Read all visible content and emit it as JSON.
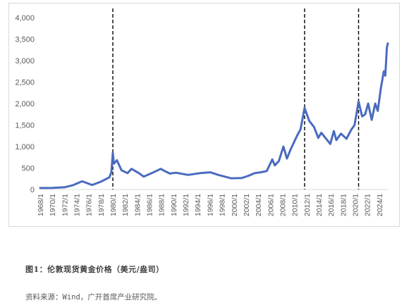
{
  "caption": "图1：伦敦现货黄金价格（美元/盎司）",
  "source": "资料来源：Wind，广开首席产业研究院。",
  "colors": {
    "line": "#4a6bbf",
    "axis": "#d9d9d9",
    "marker": "#000000"
  },
  "chart_data": {
    "type": "line",
    "title": "",
    "xlabel": "",
    "ylabel": "",
    "ylim": [
      0,
      4000
    ],
    "yticks": [
      "0",
      "500",
      "1,000",
      "1,500",
      "2,000",
      "2,500",
      "3,000",
      "3,500",
      "4,000"
    ],
    "ytick_values": [
      0,
      500,
      1000,
      1500,
      2000,
      2500,
      3000,
      3500,
      4000
    ],
    "xlim": [
      "1968/1",
      "2025/6"
    ],
    "xticks": [
      "1968/1",
      "1970/1",
      "1972/1",
      "1974/1",
      "1976/1",
      "1978/1",
      "1980/1",
      "1982/1",
      "1984/1",
      "1986/1",
      "1988/1",
      "1990/1",
      "1992/1",
      "1994/1",
      "1996/1",
      "1998/1",
      "2000/1",
      "2002/1",
      "2004/1",
      "2006/1",
      "2008/1",
      "2010/1",
      "2012/1",
      "2014/1",
      "2016/1",
      "2018/1",
      "2020/1",
      "2022/1",
      "2024/1"
    ],
    "grid": false,
    "legend": "none",
    "vertical_markers": [
      "1980/1",
      "2011/9",
      "2020/8"
    ],
    "series": [
      {
        "x": [
          "1968/1",
          "1970/1",
          "1972/1",
          "1973/6",
          "1974/12",
          "1976/8",
          "1978/1",
          "1979/6",
          "1979/10",
          "1980/1",
          "1980/3",
          "1980/9",
          "1981/6",
          "1982/6",
          "1983/2",
          "1984/6",
          "1985/2",
          "1986/6",
          "1987/12",
          "1988/6",
          "1989/6",
          "1990/6",
          "1992/6",
          "1994/6",
          "1996/2",
          "1997/6",
          "1999/7",
          "2001/4",
          "2002/6",
          "2003/6",
          "2004/6",
          "2005/6",
          "2006/5",
          "2006/10",
          "2007/6",
          "2008/3",
          "2008/10",
          "2009/6",
          "2010/6",
          "2011/1",
          "2011/9",
          "2012/6",
          "2013/4",
          "2013/12",
          "2014/6",
          "2015/12",
          "2016/7",
          "2016/12",
          "2017/9",
          "2018/8",
          "2019/6",
          "2019/12",
          "2020/8",
          "2021/3",
          "2021/9",
          "2022/3",
          "2022/10",
          "2023/5",
          "2023/10",
          "2024/4",
          "2024/10",
          "2025/1",
          "2025/4",
          "2025/6"
        ],
        "y": [
          35,
          36,
          50,
          100,
          190,
          105,
          180,
          280,
          400,
          850,
          600,
          680,
          450,
          380,
          480,
          370,
          300,
          380,
          480,
          440,
          370,
          390,
          340,
          380,
          400,
          340,
          260,
          265,
          320,
          380,
          400,
          430,
          700,
          560,
          660,
          1000,
          720,
          950,
          1250,
          1400,
          1900,
          1600,
          1450,
          1200,
          1320,
          1060,
          1360,
          1150,
          1300,
          1180,
          1400,
          1500,
          2050,
          1700,
          1750,
          2000,
          1620,
          2000,
          1830,
          2350,
          2750,
          2650,
          3300,
          3400
        ]
      }
    ]
  }
}
